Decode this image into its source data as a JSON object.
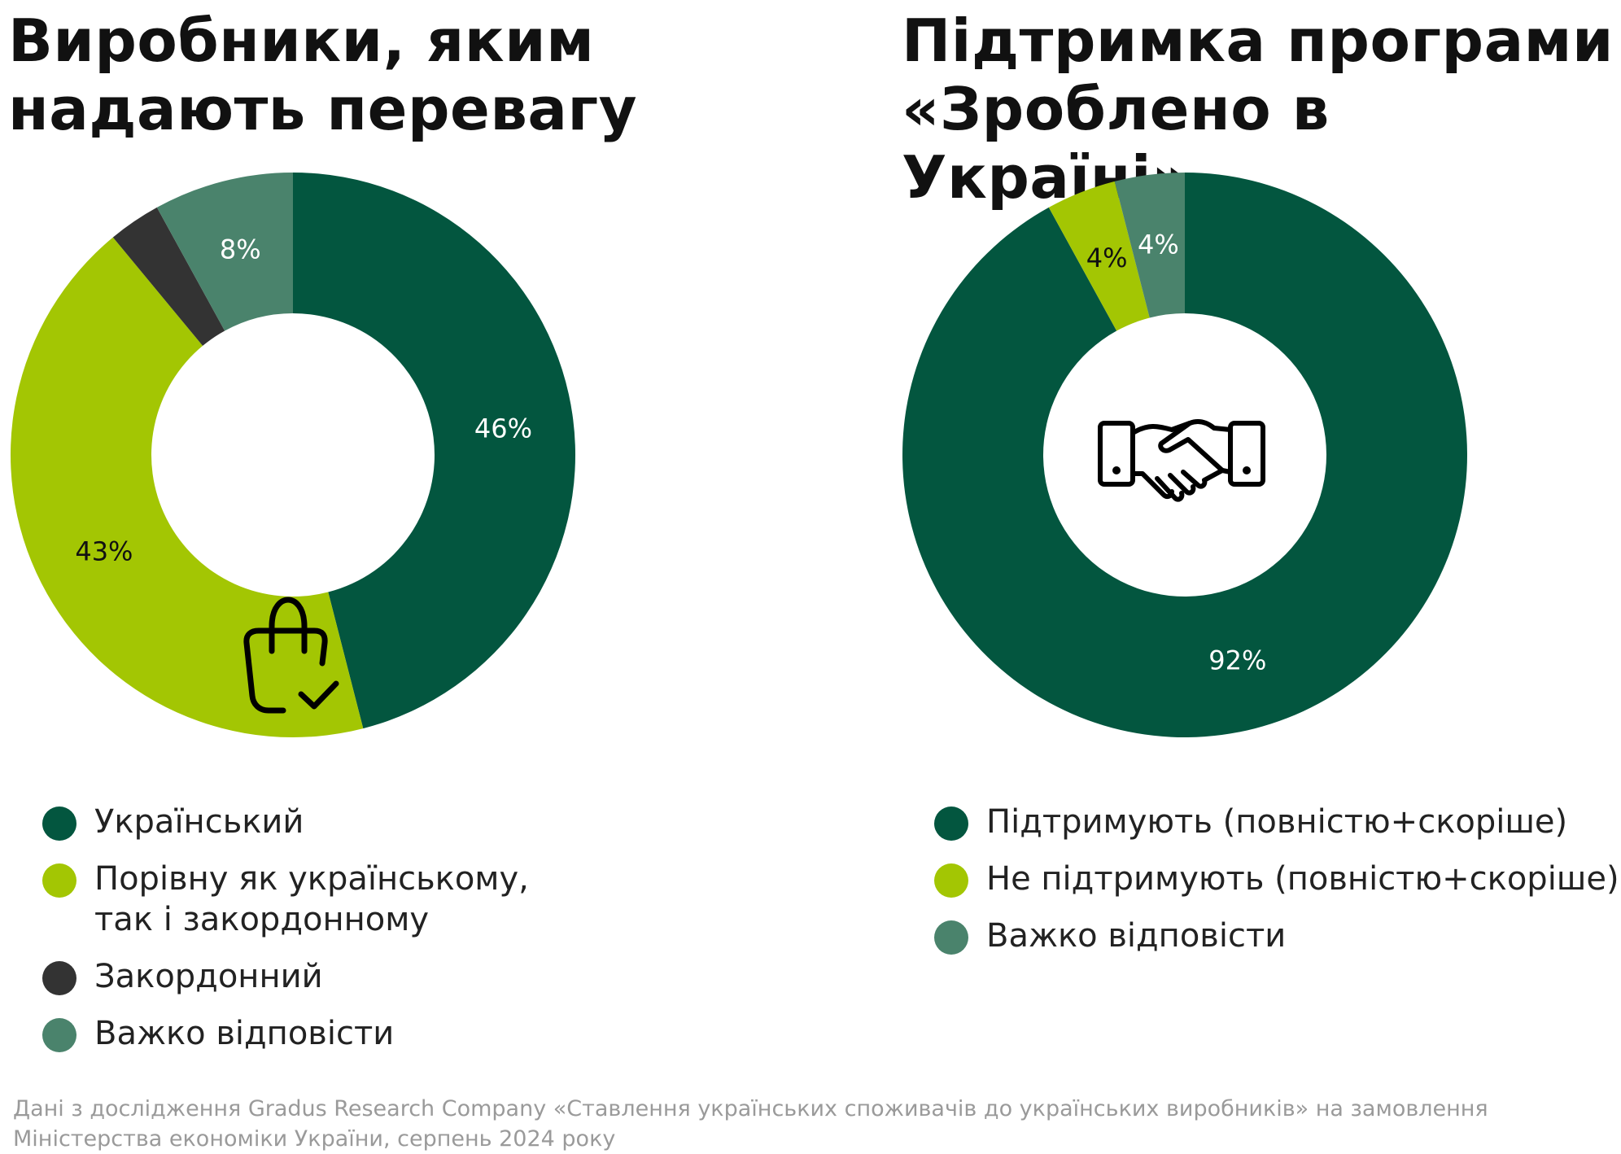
{
  "chart_data": [
    {
      "type": "donut",
      "title": "Виробники, яким надають перевагу",
      "slices": [
        {
          "label": "Український",
          "value": 46,
          "display": "46%",
          "color": "#03563F",
          "label_color": "#ffffff"
        },
        {
          "label": "Порівну як українському, так і закордонному",
          "value": 43,
          "display": "43%",
          "color": "#A3C603",
          "label_color": "#111111"
        },
        {
          "label": "Закордонний",
          "value": 3,
          "display": "",
          "color": "#333333",
          "label_color": "#ffffff"
        },
        {
          "label": "Важко відповісти",
          "value": 8,
          "display": "8%",
          "color": "#4A836C",
          "label_color": "#ffffff"
        }
      ],
      "legend": [
        {
          "text": "Український",
          "color": "#03563F"
        },
        {
          "text": "Порівну як українському,\nтак і закордонному",
          "color": "#A3C603"
        },
        {
          "text": "Закордонний",
          "color": "#333333"
        },
        {
          "text": "Важко відповісти",
          "color": "#4A836C"
        }
      ],
      "center_icon": "shopping-bag-check-icon"
    },
    {
      "type": "donut",
      "title": "Підтримка програми «Зроблено в Україні»",
      "slices": [
        {
          "label": "Підтримують (повністю+скоріше)",
          "value": 92,
          "display": "92%",
          "color": "#03563F",
          "label_color": "#ffffff"
        },
        {
          "label": "Не підтримують (повністю+скоріше)",
          "value": 4,
          "display": "4%",
          "color": "#A3C603",
          "label_color": "#111111"
        },
        {
          "label": "Важко відповісти",
          "value": 4,
          "display": "4%",
          "color": "#4A836C",
          "label_color": "#ffffff"
        }
      ],
      "legend": [
        {
          "text": "Підтримують (повністю+скоріше)",
          "color": "#03563F"
        },
        {
          "text": "Не підтримують (повністю+скоріше)",
          "color": "#A3C603"
        },
        {
          "text": "Важко відповісти",
          "color": "#4A836C"
        }
      ],
      "center_icon": "handshake-icon"
    }
  ],
  "titles": {
    "left_line1": "Виробники, яким",
    "left_line2": "надають перевагу",
    "right_line1": "Підтримка програми",
    "right_line2": "«Зроблено в Україні»"
  },
  "footer": {
    "line1": "Дані з дослідження Gradus Research Company «Ставлення українських споживачів до українських виробників» на замовлення",
    "line2": "Міністерства економіки України, серпень 2024 року"
  }
}
